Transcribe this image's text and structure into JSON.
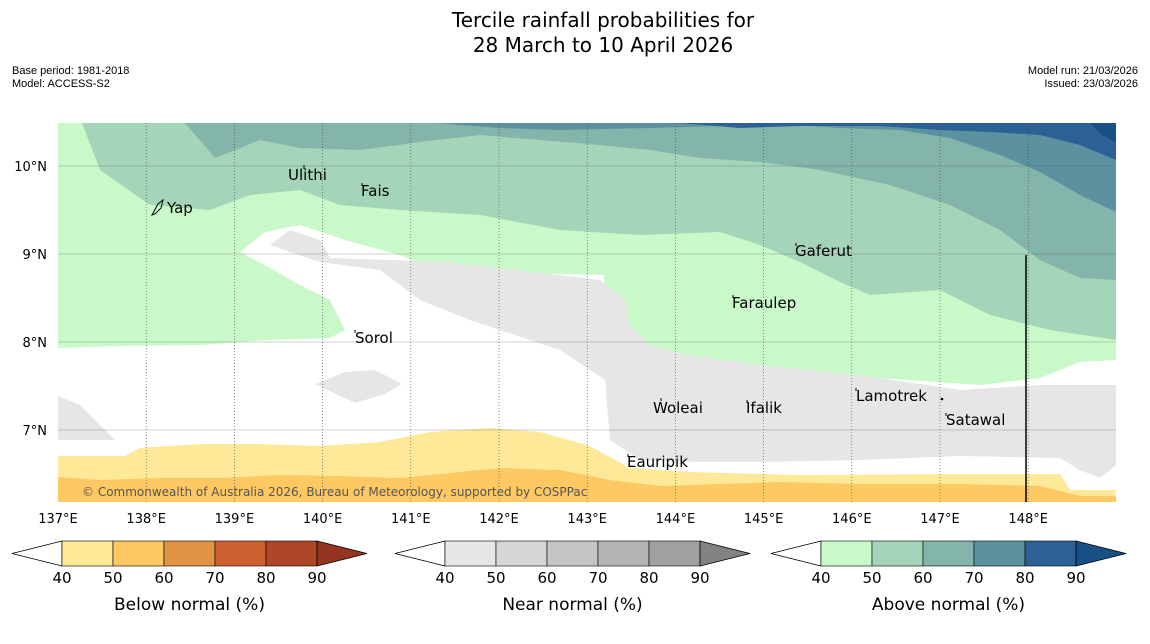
{
  "header": {
    "title_line1": "Tercile rainfall probabilities for",
    "title_line2": "28 March to 10 April 2026",
    "base_period": "Base period: 1981-2018",
    "model": "Model: ACCESS-S2",
    "model_run": "Model run: 21/03/2026",
    "issued": "Issued: 23/03/2026"
  },
  "map": {
    "latitude_labels": [
      "10°N",
      "9°N",
      "8°N",
      "7°N"
    ],
    "longitude_labels": [
      "137°E",
      "138°E",
      "139°E",
      "140°E",
      "141°E",
      "142°E",
      "143°E",
      "144°E",
      "145°E",
      "146°E",
      "147°E",
      "148°E"
    ],
    "places": [
      "Ulithi",
      "Fais",
      "Yap",
      "Gaferut",
      "Faraulep",
      "Sorol",
      "Woleai",
      "Ifalik",
      "Lamotrek",
      "Satawal",
      "Eauripik"
    ],
    "copyright": "© Commonwealth of Australia 2026, Bureau of Meteorology, supported by COSPPac"
  },
  "legends": {
    "tick_values": [
      "40",
      "50",
      "60",
      "70",
      "80",
      "90"
    ],
    "below_normal": {
      "title": "Below normal (%)",
      "colors": [
        "#fee999",
        "#fec962",
        "#e09444",
        "#cc6030",
        "#b04628",
        "#953420"
      ]
    },
    "near_normal": {
      "title": "Near normal (%)",
      "colors": [
        "#e6e6e6",
        "#d6d6d6",
        "#c4c4c4",
        "#b4b4b4",
        "#a0a0a0",
        "#828282"
      ]
    },
    "above_normal": {
      "title": "Above normal (%)",
      "colors": [
        "#caf9c9",
        "#a4d5b8",
        "#84b5ab",
        "#5c91a0",
        "#2d6095",
        "#184f85"
      ]
    }
  }
}
